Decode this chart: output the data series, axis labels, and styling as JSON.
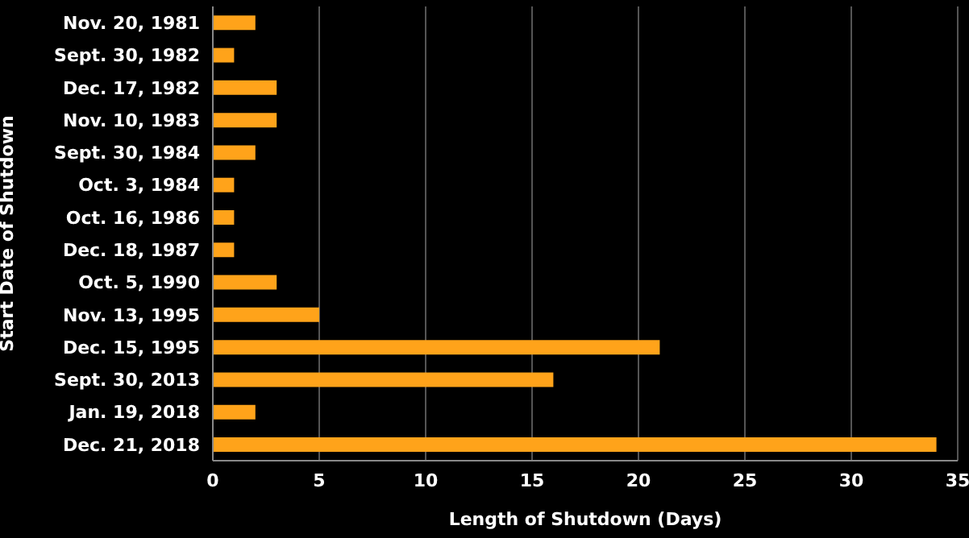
{
  "chart_data": {
    "type": "bar",
    "orientation": "horizontal",
    "xlabel": "Length of Shutdown (Days)",
    "ylabel": "Start Date of Shutdown",
    "categories": [
      "Nov. 20, 1981",
      "Sept. 30, 1982",
      "Dec. 17, 1982",
      "Nov. 10, 1983",
      "Sept. 30, 1984",
      "Oct. 3, 1984",
      "Oct. 16, 1986",
      "Dec. 18, 1987",
      "Oct. 5, 1990",
      "Nov. 13, 1995",
      "Dec. 15, 1995",
      "Sept. 30, 2013",
      "Jan. 19, 2018",
      "Dec. 21, 2018"
    ],
    "values": [
      2,
      1,
      3,
      3,
      2,
      1,
      1,
      1,
      3,
      5,
      21,
      16,
      2,
      34
    ],
    "color": "#ffa31a",
    "xlim": [
      0,
      35
    ],
    "xticks": [
      0,
      5,
      10,
      15,
      20,
      25,
      30,
      35
    ],
    "grid": "x"
  }
}
